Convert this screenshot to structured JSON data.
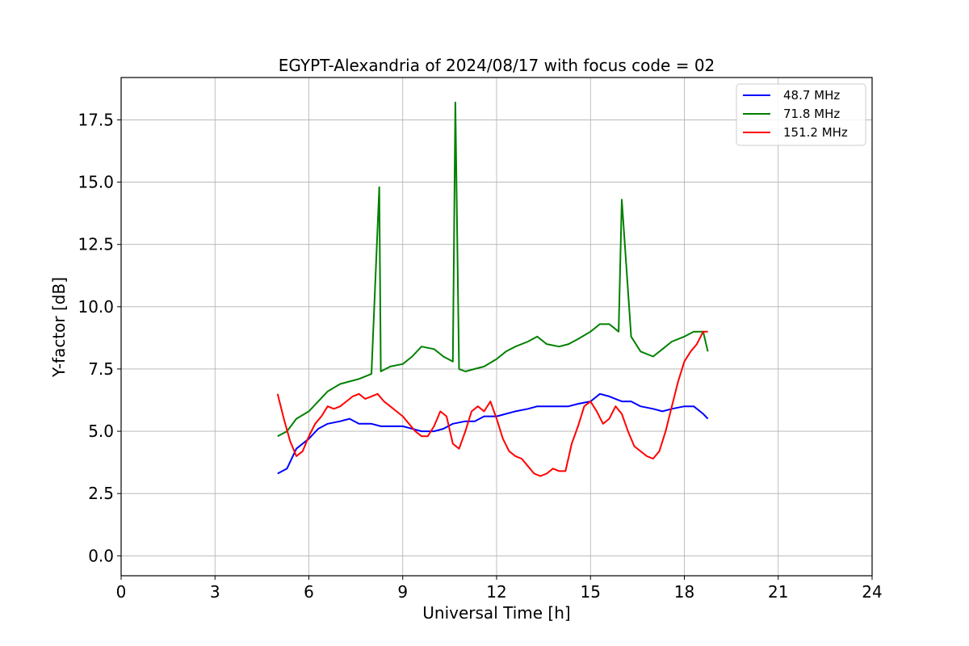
{
  "chart_data": {
    "type": "line",
    "title": "EGYPT-Alexandria of 2024/08/17 with focus code = 02",
    "xlabel": "Universal Time [h]",
    "ylabel": "Y-factor [dB]",
    "xlim": [
      0,
      24
    ],
    "ylim": [
      -0.8,
      19.2
    ],
    "xticks": [
      0,
      3,
      6,
      9,
      12,
      15,
      18,
      21,
      24
    ],
    "yticks": [
      0.0,
      2.5,
      5.0,
      7.5,
      10.0,
      12.5,
      15.0,
      17.5
    ],
    "xtick_labels": [
      "0",
      "3",
      "6",
      "9",
      "12",
      "15",
      "18",
      "21",
      "24"
    ],
    "ytick_labels": [
      "0.0",
      "2.5",
      "5.0",
      "7.5",
      "10.0",
      "12.5",
      "15.0",
      "17.5"
    ],
    "grid": true,
    "legend_position": "top-right",
    "series": [
      {
        "name": " 48.7 MHz",
        "color": "#0000ff",
        "x": [
          5.0,
          5.3,
          5.6,
          6.0,
          6.3,
          6.6,
          7.0,
          7.3,
          7.6,
          8.0,
          8.3,
          8.6,
          9.0,
          9.3,
          9.6,
          10.0,
          10.3,
          10.6,
          11.0,
          11.3,
          11.6,
          12.0,
          12.3,
          12.6,
          13.0,
          13.3,
          13.6,
          14.0,
          14.3,
          14.6,
          15.0,
          15.3,
          15.6,
          16.0,
          16.3,
          16.6,
          17.0,
          17.3,
          17.6,
          18.0,
          18.3,
          18.6,
          18.75
        ],
        "y": [
          3.3,
          3.5,
          4.3,
          4.7,
          5.1,
          5.3,
          5.4,
          5.5,
          5.3,
          5.3,
          5.2,
          5.2,
          5.2,
          5.1,
          5.0,
          5.0,
          5.1,
          5.3,
          5.4,
          5.4,
          5.6,
          5.6,
          5.7,
          5.8,
          5.9,
          6.0,
          6.0,
          6.0,
          6.0,
          6.1,
          6.2,
          6.5,
          6.4,
          6.2,
          6.2,
          6.0,
          5.9,
          5.8,
          5.9,
          6.0,
          6.0,
          5.7,
          5.5
        ]
      },
      {
        "name": " 71.8 MHz",
        "color": "#008000",
        "x": [
          5.0,
          5.3,
          5.6,
          6.0,
          6.3,
          6.6,
          7.0,
          7.3,
          7.6,
          8.0,
          8.25,
          8.3,
          8.6,
          9.0,
          9.3,
          9.6,
          10.0,
          10.3,
          10.6,
          10.68,
          10.8,
          11.0,
          11.3,
          11.6,
          12.0,
          12.3,
          12.6,
          13.0,
          13.3,
          13.6,
          14.0,
          14.3,
          14.6,
          15.0,
          15.3,
          15.6,
          15.9,
          16.0,
          16.3,
          16.6,
          17.0,
          17.3,
          17.6,
          18.0,
          18.3,
          18.6,
          18.75
        ],
        "y": [
          4.8,
          5.0,
          5.5,
          5.8,
          6.2,
          6.6,
          6.9,
          7.0,
          7.1,
          7.3,
          14.8,
          7.4,
          7.6,
          7.7,
          8.0,
          8.4,
          8.3,
          8.0,
          7.8,
          18.2,
          7.5,
          7.4,
          7.5,
          7.6,
          7.9,
          8.2,
          8.4,
          8.6,
          8.8,
          8.5,
          8.4,
          8.5,
          8.7,
          9.0,
          9.3,
          9.3,
          9.0,
          14.3,
          8.8,
          8.2,
          8.0,
          8.3,
          8.6,
          8.8,
          9.0,
          9.0,
          8.2
        ]
      },
      {
        "name": "151.2 MHz",
        "color": "#ff0000",
        "x": [
          5.0,
          5.2,
          5.4,
          5.6,
          5.8,
          6.0,
          6.2,
          6.4,
          6.6,
          6.8,
          7.0,
          7.2,
          7.4,
          7.6,
          7.8,
          8.0,
          8.2,
          8.4,
          8.6,
          8.8,
          9.0,
          9.2,
          9.4,
          9.6,
          9.8,
          10.0,
          10.2,
          10.4,
          10.6,
          10.8,
          11.0,
          11.2,
          11.4,
          11.6,
          11.8,
          12.0,
          12.2,
          12.4,
          12.6,
          12.8,
          13.0,
          13.2,
          13.4,
          13.6,
          13.8,
          14.0,
          14.2,
          14.4,
          14.6,
          14.8,
          15.0,
          15.2,
          15.4,
          15.6,
          15.8,
          16.0,
          16.2,
          16.4,
          16.6,
          16.8,
          17.0,
          17.2,
          17.4,
          17.6,
          17.8,
          18.0,
          18.2,
          18.4,
          18.6,
          18.75
        ],
        "y": [
          6.5,
          5.5,
          4.6,
          4.0,
          4.2,
          4.8,
          5.3,
          5.6,
          6.0,
          5.9,
          6.0,
          6.2,
          6.4,
          6.5,
          6.3,
          6.4,
          6.5,
          6.2,
          6.0,
          5.8,
          5.6,
          5.3,
          5.0,
          4.8,
          4.8,
          5.2,
          5.8,
          5.6,
          4.5,
          4.3,
          5.0,
          5.8,
          6.0,
          5.8,
          6.2,
          5.5,
          4.7,
          4.2,
          4.0,
          3.9,
          3.6,
          3.3,
          3.2,
          3.3,
          3.5,
          3.4,
          3.4,
          4.5,
          5.2,
          6.0,
          6.2,
          5.8,
          5.3,
          5.5,
          6.0,
          5.7,
          5.0,
          4.4,
          4.2,
          4.0,
          3.9,
          4.2,
          5.0,
          6.0,
          7.0,
          7.8,
          8.2,
          8.5,
          9.0,
          9.0
        ]
      }
    ]
  }
}
